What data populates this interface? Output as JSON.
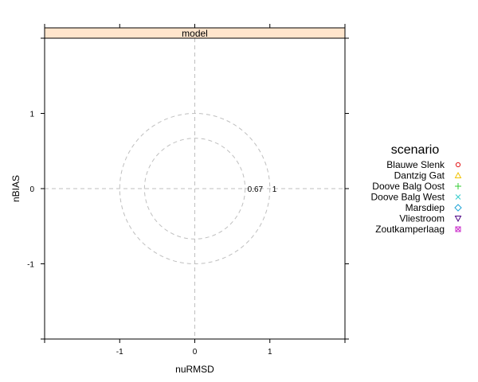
{
  "chart_data": {
    "type": "scatter",
    "strip_label": "model",
    "xlabel": "nuRMSD",
    "ylabel": "nBIAS",
    "xlim": [
      -2,
      2
    ],
    "ylim": [
      -2,
      2
    ],
    "x_ticks": [
      -1,
      0,
      1
    ],
    "y_ticks": [
      -1,
      0,
      1
    ],
    "reference_circles": [
      {
        "radius": 0.67,
        "label": "0.67"
      },
      {
        "radius": 1,
        "label": "1"
      }
    ],
    "reference_lines": {
      "x": 0,
      "y": 0,
      "style": "dashed",
      "color": "#bfbfbf"
    },
    "strip_color": "#ffe5cc",
    "legend": {
      "title": "scenario",
      "placement": "right",
      "entries": [
        {
          "name": "Blauwe Slenk",
          "symbol": "circle",
          "color": "#e41a1c"
        },
        {
          "name": "Dantzig Gat",
          "symbol": "triangle",
          "color": "#f2c200"
        },
        {
          "name": "Doove Balg Oost",
          "symbol": "plus",
          "color": "#33cc33"
        },
        {
          "name": "Doove Balg West",
          "symbol": "cross",
          "color": "#33cccc"
        },
        {
          "name": "Marsdiep",
          "symbol": "diamond",
          "color": "#1fa3d6"
        },
        {
          "name": "Vliestroom",
          "symbol": "triangle-down",
          "color": "#4b0082"
        },
        {
          "name": "Zoutkamperlaag",
          "symbol": "square-cross",
          "color": "#cc33cc"
        }
      ]
    },
    "series": [
      {
        "name": "Blauwe Slenk",
        "points": []
      },
      {
        "name": "Dantzig Gat",
        "points": []
      },
      {
        "name": "Doove Balg Oost",
        "points": []
      },
      {
        "name": "Doove Balg West",
        "points": []
      },
      {
        "name": "Marsdiep",
        "points": []
      },
      {
        "name": "Vliestroom",
        "points": []
      },
      {
        "name": "Zoutkamperlaag",
        "points": []
      }
    ]
  }
}
